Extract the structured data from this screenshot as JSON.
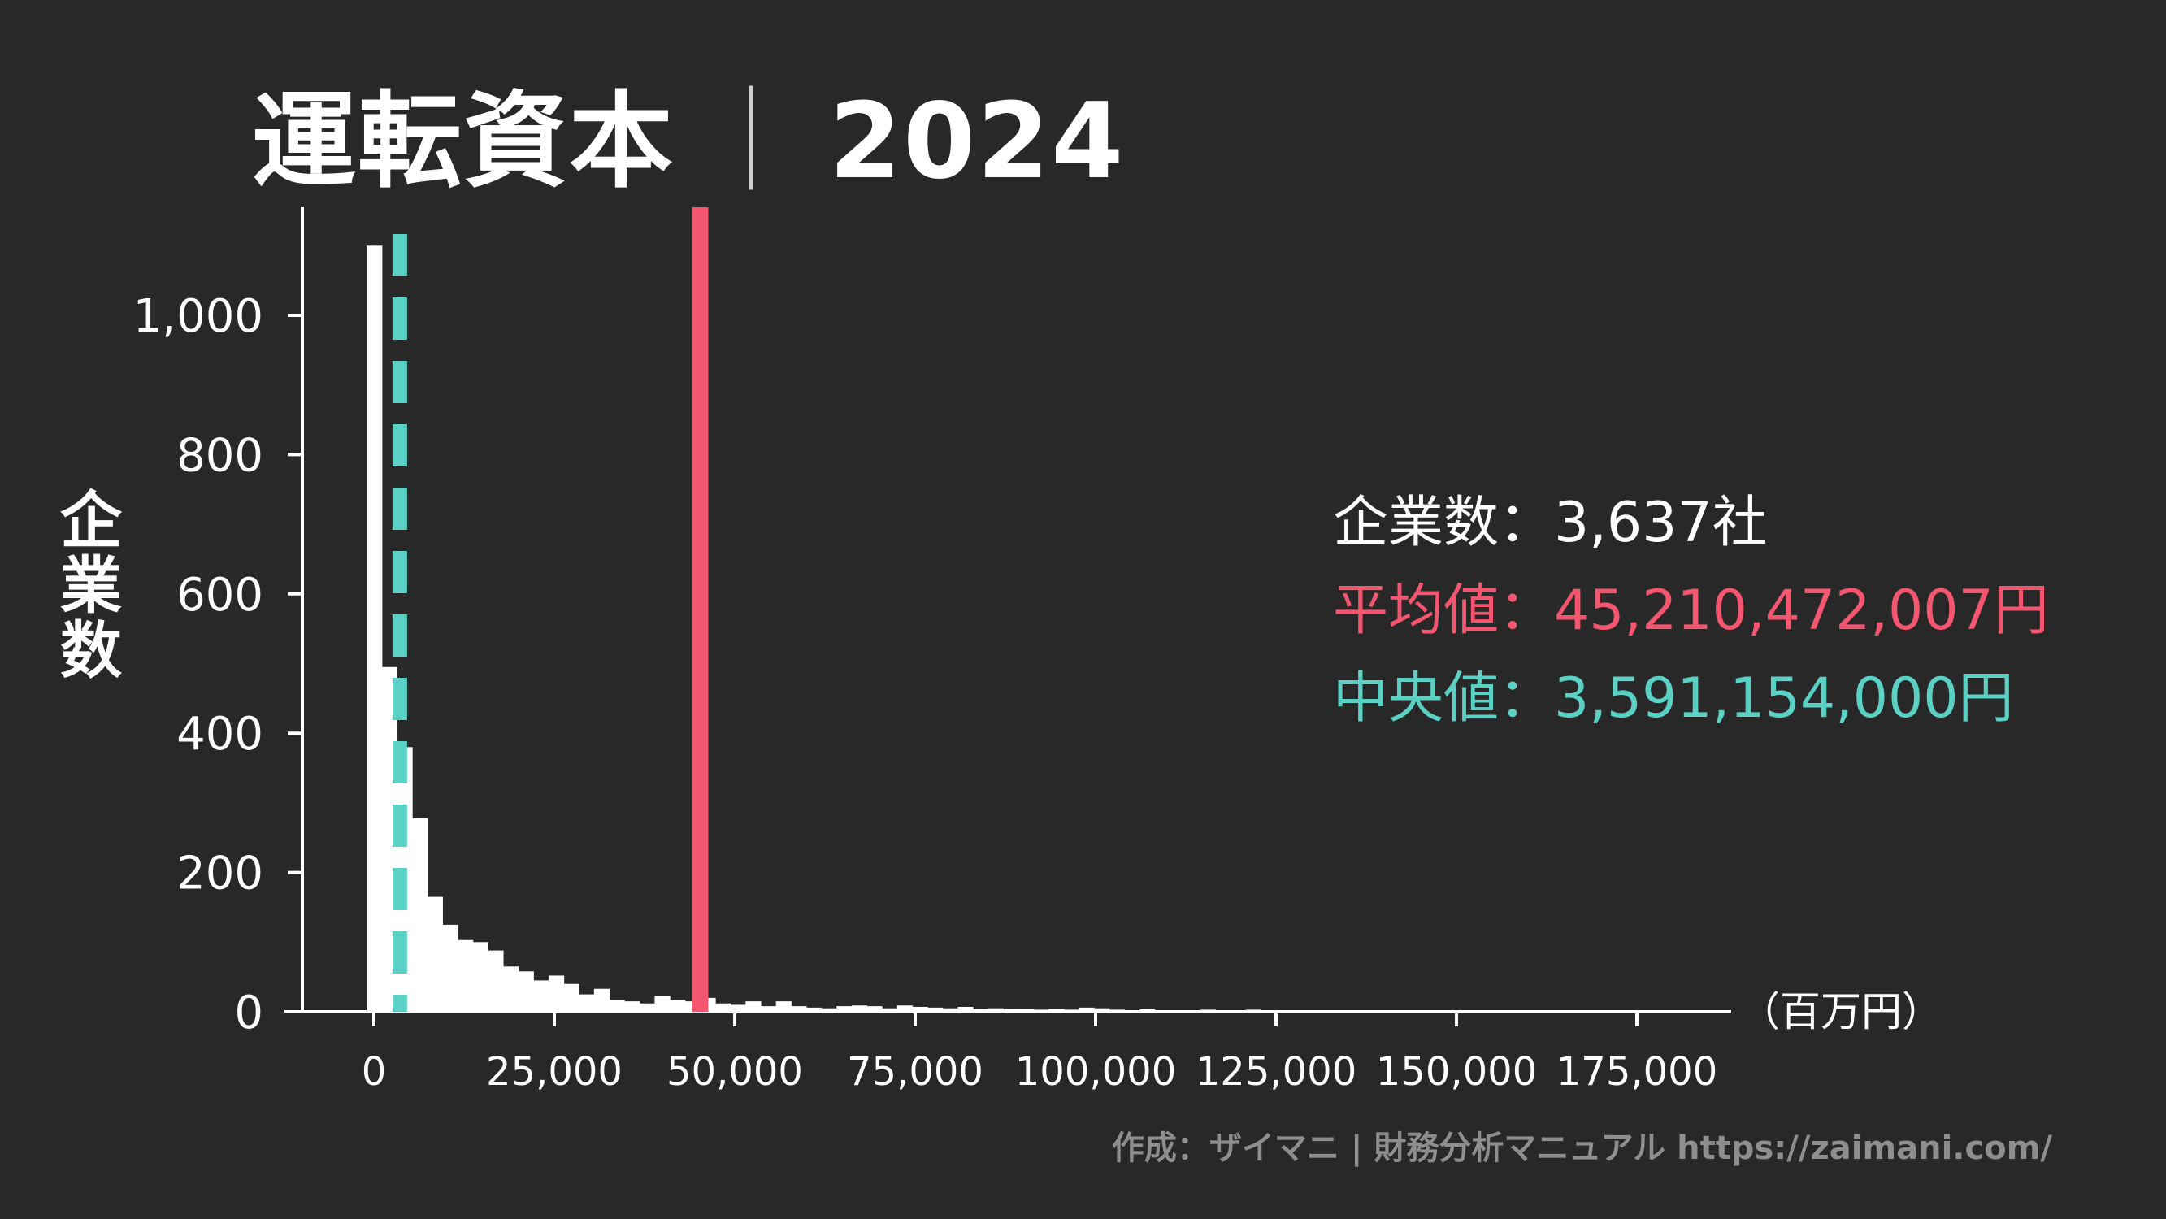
{
  "title": {
    "main": "運転資本",
    "separator": "｜",
    "year": "2024"
  },
  "stats": {
    "count_label": "企業数：",
    "count_value": "3,637社",
    "mean_label": "平均値：",
    "mean_value": "45,210,472,007円",
    "median_label": "中央値：",
    "median_value": "3,591,154,000円"
  },
  "credit": "作成：ザイマニ | 財務分析マニュアル https://zaimani.com/",
  "colors": {
    "background": "#282828",
    "bars": "#ffffff",
    "mean_line": "#f4556f",
    "median_line": "#5ad1c4",
    "credit": "#8e8e8e"
  },
  "chart_data": {
    "type": "bar",
    "title": "運転資本｜2024",
    "xlabel": "（百万円）",
    "ylabel": "企業数",
    "xlim": [
      -12500,
      187500
    ],
    "ylim": [
      0,
      1150
    ],
    "x_ticks": [
      0,
      25000,
      50000,
      75000,
      100000,
      125000,
      150000,
      175000
    ],
    "x_tick_labels": [
      "0",
      "25,000",
      "50,000",
      "75,000",
      "100,000",
      "125,000",
      "150,000",
      "175,000"
    ],
    "y_ticks": [
      0,
      200,
      400,
      600,
      800,
      1000
    ],
    "y_tick_labels": [
      "0",
      "200",
      "400",
      "600",
      "800",
      "1,000"
    ],
    "bin_start": -1000,
    "bin_width": 2100,
    "counts": [
      1100,
      495,
      380,
      278,
      165,
      125,
      103,
      100,
      88,
      65,
      58,
      45,
      52,
      40,
      25,
      33,
      17,
      15,
      12,
      23,
      17,
      15,
      20,
      12,
      10,
      15,
      8,
      15,
      8,
      6,
      5,
      8,
      9,
      8,
      5,
      9,
      7,
      6,
      5,
      7,
      4,
      5,
      4,
      4,
      3,
      4,
      3,
      6,
      5,
      3,
      2,
      4,
      2,
      2,
      2,
      3,
      2,
      2,
      3,
      2,
      2,
      2,
      2,
      2,
      2,
      2,
      2,
      2,
      2,
      2,
      2,
      2,
      2,
      2,
      2,
      2,
      2,
      2,
      2,
      2,
      2,
      2,
      2,
      2,
      2,
      2,
      2,
      2
    ],
    "reference_lines": [
      {
        "name": "median",
        "x": 3591,
        "style": "dashed",
        "color": "#5ad1c4"
      },
      {
        "name": "mean",
        "x": 45210,
        "style": "solid",
        "color": "#f4556f"
      }
    ],
    "grid": false,
    "legend": "none"
  }
}
